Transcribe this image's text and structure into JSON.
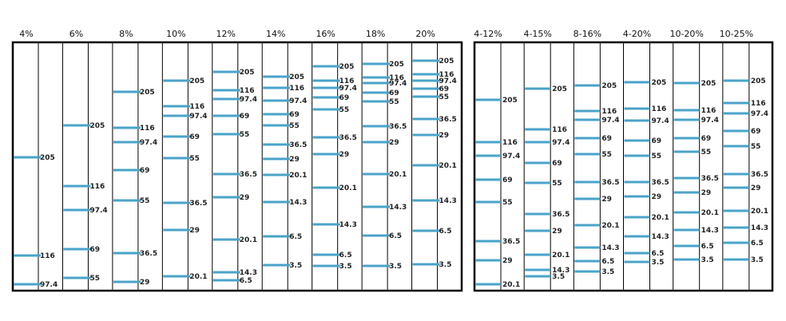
{
  "band_color": "#4aa3c9",
  "panels": [
    {
      "lanes": [
        {
          "label": "4%",
          "bands": [
            {
              "size": "205",
              "y": 197
            },
            {
              "size": "116",
              "y": 320
            },
            {
              "size": "97.4",
              "y": 356
            }
          ]
        },
        {
          "label": "6%",
          "bands": [
            {
              "size": "205",
              "y": 157
            },
            {
              "size": "116",
              "y": 233
            },
            {
              "size": "97.4",
              "y": 263
            },
            {
              "size": "69",
              "y": 312
            },
            {
              "size": "55",
              "y": 348
            }
          ]
        },
        {
          "label": "8%",
          "bands": [
            {
              "size": "205",
              "y": 115
            },
            {
              "size": "116",
              "y": 160
            },
            {
              "size": "97.4",
              "y": 178
            },
            {
              "size": "69",
              "y": 213
            },
            {
              "size": "55",
              "y": 251
            },
            {
              "size": "36.5",
              "y": 317
            },
            {
              "size": "29",
              "y": 353
            }
          ]
        },
        {
          "label": "10%",
          "bands": [
            {
              "size": "205",
              "y": 101
            },
            {
              "size": "116",
              "y": 133
            },
            {
              "size": "97.4",
              "y": 145
            },
            {
              "size": "69",
              "y": 171
            },
            {
              "size": "55",
              "y": 198
            },
            {
              "size": "36.5",
              "y": 254
            },
            {
              "size": "29",
              "y": 288
            },
            {
              "size": "20.1",
              "y": 346
            }
          ]
        },
        {
          "label": "12%",
          "bands": [
            {
              "size": "205",
              "y": 90
            },
            {
              "size": "116",
              "y": 113
            },
            {
              "size": "97.4",
              "y": 124
            },
            {
              "size": "69",
              "y": 145
            },
            {
              "size": "55",
              "y": 168
            },
            {
              "size": "36.5",
              "y": 218
            },
            {
              "size": "29",
              "y": 247
            },
            {
              "size": "20.1",
              "y": 300
            },
            {
              "size": "14.3",
              "y": 341
            },
            {
              "size": "6.5",
              "y": 351
            }
          ]
        },
        {
          "label": "14%",
          "bands": [
            {
              "size": "205",
              "y": 96
            },
            {
              "size": "116",
              "y": 110
            },
            {
              "size": "97.4",
              "y": 126
            },
            {
              "size": "69",
              "y": 143
            },
            {
              "size": "55",
              "y": 157
            },
            {
              "size": "36.5",
              "y": 181
            },
            {
              "size": "29",
              "y": 199
            },
            {
              "size": "20.1",
              "y": 219
            },
            {
              "size": "14.3",
              "y": 253
            },
            {
              "size": "6.5",
              "y": 296
            },
            {
              "size": "3.5",
              "y": 332
            }
          ]
        },
        {
          "label": "16%",
          "bands": [
            {
              "size": "205",
              "y": 83
            },
            {
              "size": "116",
              "y": 101
            },
            {
              "size": "97.4",
              "y": 110
            },
            {
              "size": "69",
              "y": 122
            },
            {
              "size": "55",
              "y": 137
            },
            {
              "size": "36.5",
              "y": 172
            },
            {
              "size": "29",
              "y": 193
            },
            {
              "size": "20.1",
              "y": 235
            },
            {
              "size": "14.3",
              "y": 281
            },
            {
              "size": "6.5",
              "y": 319
            },
            {
              "size": "3.5",
              "y": 333
            }
          ]
        },
        {
          "label": "18%",
          "bands": [
            {
              "size": "205",
              "y": 80
            },
            {
              "size": "116",
              "y": 97
            },
            {
              "size": "97.4",
              "y": 104
            },
            {
              "size": "69",
              "y": 116
            },
            {
              "size": "55",
              "y": 127
            },
            {
              "size": "36.5",
              "y": 158
            },
            {
              "size": "29",
              "y": 178
            },
            {
              "size": "20.1",
              "y": 218
            },
            {
              "size": "14.3",
              "y": 259
            },
            {
              "size": "6.5",
              "y": 295
            },
            {
              "size": "3.5",
              "y": 333
            }
          ]
        },
        {
          "label": "20%",
          "bands": [
            {
              "size": "205",
              "y": 76
            },
            {
              "size": "116",
              "y": 93
            },
            {
              "size": "97.4",
              "y": 101
            },
            {
              "size": "69",
              "y": 111
            },
            {
              "size": "55",
              "y": 121
            },
            {
              "size": "36.5",
              "y": 149
            },
            {
              "size": "29",
              "y": 169
            },
            {
              "size": "20.1",
              "y": 207
            },
            {
              "size": "14.3",
              "y": 251
            },
            {
              "size": "6.5",
              "y": 289
            },
            {
              "size": "3.5",
              "y": 331
            }
          ]
        }
      ]
    },
    {
      "lanes": [
        {
          "label": "4-12%",
          "bands": [
            {
              "size": "205",
              "y": 125
            },
            {
              "size": "116",
              "y": 178
            },
            {
              "size": "97.4",
              "y": 195
            },
            {
              "size": "69",
              "y": 225
            },
            {
              "size": "55",
              "y": 253
            },
            {
              "size": "36.5",
              "y": 302
            },
            {
              "size": "29",
              "y": 326
            },
            {
              "size": "20.1",
              "y": 356
            }
          ]
        },
        {
          "label": "4-15%",
          "bands": [
            {
              "size": "205",
              "y": 111
            },
            {
              "size": "116",
              "y": 162
            },
            {
              "size": "97.4",
              "y": 178
            },
            {
              "size": "69",
              "y": 204
            },
            {
              "size": "55",
              "y": 229
            },
            {
              "size": "36.5",
              "y": 268
            },
            {
              "size": "29",
              "y": 289
            },
            {
              "size": "20.1",
              "y": 319
            },
            {
              "size": "14.3",
              "y": 338
            },
            {
              "size": "3.5",
              "y": 346
            }
          ]
        },
        {
          "label": "8-16%",
          "bands": [
            {
              "size": "205",
              "y": 107
            },
            {
              "size": "116",
              "y": 139
            },
            {
              "size": "97.4",
              "y": 150
            },
            {
              "size": "69",
              "y": 173
            },
            {
              "size": "55",
              "y": 193
            },
            {
              "size": "36.5",
              "y": 228
            },
            {
              "size": "29",
              "y": 249
            },
            {
              "size": "20.1",
              "y": 282
            },
            {
              "size": "14.3",
              "y": 310
            },
            {
              "size": "6.5",
              "y": 327
            },
            {
              "size": "3.5",
              "y": 340
            }
          ]
        },
        {
          "label": "4-20%",
          "bands": [
            {
              "size": "205",
              "y": 103
            },
            {
              "size": "116",
              "y": 136
            },
            {
              "size": "97.4",
              "y": 151
            },
            {
              "size": "69",
              "y": 176
            },
            {
              "size": "55",
              "y": 195
            },
            {
              "size": "36.5",
              "y": 228
            },
            {
              "size": "29",
              "y": 246
            },
            {
              "size": "20.1",
              "y": 272
            },
            {
              "size": "14.3",
              "y": 296
            },
            {
              "size": "6.5",
              "y": 317
            },
            {
              "size": "3.5",
              "y": 328
            }
          ]
        },
        {
          "label": "10-20%",
          "bands": [
            {
              "size": "205",
              "y": 104
            },
            {
              "size": "116",
              "y": 138
            },
            {
              "size": "97.4",
              "y": 150
            },
            {
              "size": "69",
              "y": 173
            },
            {
              "size": "55",
              "y": 190
            },
            {
              "size": "36.5",
              "y": 223
            },
            {
              "size": "29",
              "y": 241
            },
            {
              "size": "20.1",
              "y": 266
            },
            {
              "size": "14.3",
              "y": 288
            },
            {
              "size": "6.5",
              "y": 308
            },
            {
              "size": "3.5",
              "y": 325
            }
          ]
        },
        {
          "label": "10-25%",
          "bands": [
            {
              "size": "205",
              "y": 101
            },
            {
              "size": "116",
              "y": 129
            },
            {
              "size": "97.4",
              "y": 142
            },
            {
              "size": "69",
              "y": 164
            },
            {
              "size": "55",
              "y": 183
            },
            {
              "size": "36.5",
              "y": 218
            },
            {
              "size": "29",
              "y": 235
            },
            {
              "size": "20.1",
              "y": 264
            },
            {
              "size": "14.3",
              "y": 285
            },
            {
              "size": "6.5",
              "y": 304
            },
            {
              "size": "3.5",
              "y": 325
            }
          ]
        }
      ]
    }
  ]
}
